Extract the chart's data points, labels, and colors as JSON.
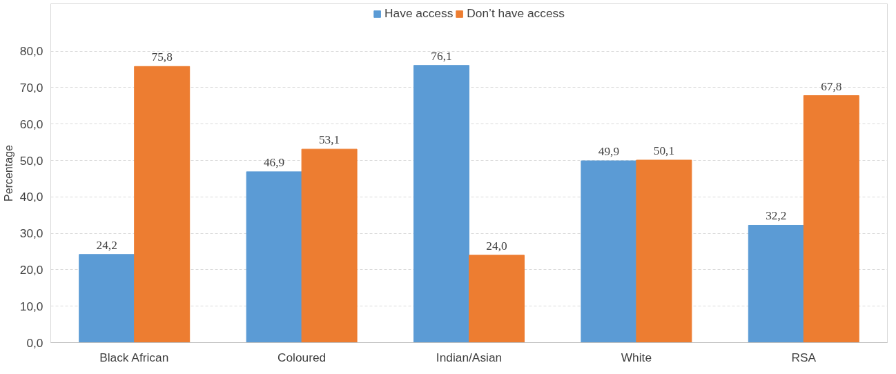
{
  "chart_data": {
    "type": "bar",
    "ylabel": "Percentage",
    "categories": [
      "Black African",
      "Coloured",
      "Indian/Asian",
      "White",
      "RSA"
    ],
    "series": [
      {
        "name": "Have access",
        "color": "#5b9bd5",
        "values": [
          24.2,
          46.9,
          76.1,
          49.9,
          32.2
        ],
        "value_labels": [
          "24,2",
          "46,9",
          "76,1",
          "49,9",
          "32,2"
        ]
      },
      {
        "name": "Don’t have access",
        "color": "#ed7d31",
        "values": [
          75.8,
          53.1,
          24.0,
          50.1,
          67.8
        ],
        "value_labels": [
          "75,8",
          "53,1",
          "24,0",
          "50,1",
          "67,8"
        ]
      }
    ],
    "ylim": [
      0,
      93
    ],
    "yticks": [
      {
        "value": 0,
        "label": "0,0"
      },
      {
        "value": 10,
        "label": "10,0"
      },
      {
        "value": 20,
        "label": "20,0"
      },
      {
        "value": 30,
        "label": "30,0"
      },
      {
        "value": 40,
        "label": "40,0"
      },
      {
        "value": 50,
        "label": "50,0"
      },
      {
        "value": 60,
        "label": "60,0"
      },
      {
        "value": 70,
        "label": "70,0"
      },
      {
        "value": 80,
        "label": "80,0"
      }
    ],
    "grid": "y",
    "legend": "top"
  }
}
